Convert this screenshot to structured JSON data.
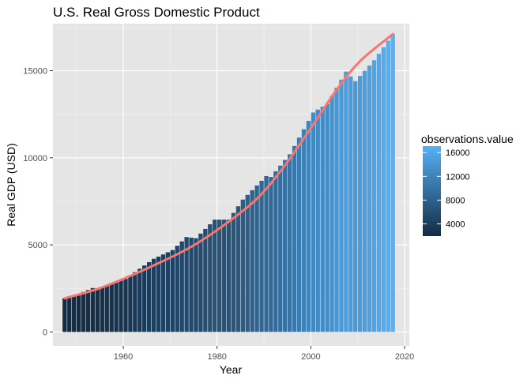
{
  "chart_data": {
    "type": "bar",
    "title": "U.S. Real Gross Domestic Product",
    "xlabel": "Year",
    "ylabel": "Real GDP (USD)",
    "xlim": [
      1945,
      2021
    ],
    "ylim": [
      -800,
      17700
    ],
    "x_ticks": [
      1960,
      1980,
      2000,
      2020
    ],
    "y_ticks": [
      0,
      5000,
      10000,
      15000
    ],
    "grid": true,
    "panel_background": "#E5E5E5",
    "fill_scale": {
      "title": "observations.value",
      "low": "#132B43",
      "high": "#56B1F7",
      "limits": [
        1934,
        17096
      ],
      "breaks": [
        4000,
        8000,
        12000,
        16000
      ]
    },
    "smooth_color": "#F8766D",
    "smooth": {
      "x": [
        1947,
        1955,
        1965,
        1975,
        1985,
        1990,
        1995,
        2000,
        2005,
        2010,
        2017
      ],
      "y": [
        1930,
        2560,
        3700,
        5050,
        6950,
        8220,
        9950,
        11900,
        13900,
        15550,
        17100
      ]
    },
    "anchors": {
      "x": [
        1947,
        1948,
        1950,
        1953,
        1954,
        1958,
        1960,
        1966,
        1970,
        1973,
        1975,
        1979,
        1982,
        1985,
        1990,
        1991,
        1995,
        2000,
        2003,
        2007,
        2009,
        2013,
        2017
      ],
      "y": [
        1934,
        2000,
        2180,
        2520,
        2500,
        2840,
        3050,
        4200,
        4700,
        5450,
        5380,
        6450,
        6450,
        7600,
        8950,
        8900,
        10200,
        12600,
        13100,
        14950,
        14400,
        15600,
        17096
      ]
    },
    "year_range": [
      1947,
      2017
    ]
  }
}
